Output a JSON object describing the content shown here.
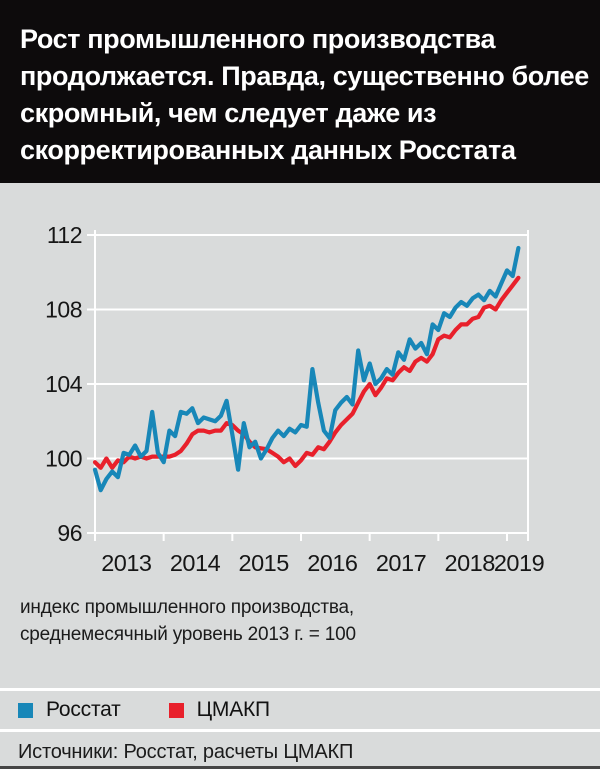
{
  "header": {
    "title_lines": [
      "Рост промышленного производства",
      "продолжается. Правда, существенно более",
      "скромный, чем следует даже из",
      "скорректированных данных Росстата"
    ]
  },
  "caption": {
    "line1": "индекс промышленного производства,",
    "line2": "среднемесячный уровень 2013 г. = 100"
  },
  "legend": {
    "items": [
      {
        "label": "Росстат",
        "color": "#1887b8"
      },
      {
        "label": "ЦМАКП",
        "color": "#e8202b"
      }
    ]
  },
  "footer": {
    "sources": "Источники: Росстат, расчеты ЦМАКП"
  },
  "colors": {
    "background": "#d9dbdb",
    "header_background": "#0d0b0c",
    "grid": "#ffffff",
    "axis_text": "#161616",
    "rosstat_blue": "#1887b8",
    "cmasf_red": "#e8202b"
  },
  "chart_data": {
    "type": "line",
    "title": "Рост промышленного производства продолжается. Правда, существенно более скромный, чем следует даже из скорректированных данных Росстата",
    "subtitle": "индекс промышленного производства, среднемесячный уровень 2013 г. = 100",
    "x_interval": "monthly",
    "x_start": "2013-01",
    "x_end": "2019-03",
    "x_tick_labels": [
      "2013",
      "2014",
      "2015",
      "2016",
      "2017",
      "2018",
      "2019"
    ],
    "y_ticks": [
      96,
      100,
      104,
      108,
      112
    ],
    "ylim": [
      96,
      112
    ],
    "grid": true,
    "legend_position": "bottom",
    "series": [
      {
        "name": "Росстат",
        "color": "#1887b8",
        "values": [
          99.4,
          98.3,
          98.9,
          99.3,
          99.0,
          100.3,
          100.2,
          100.7,
          100.1,
          100.4,
          102.5,
          100.3,
          99.8,
          101.5,
          101.2,
          102.5,
          102.4,
          102.7,
          101.9,
          102.2,
          102.1,
          102.0,
          102.3,
          103.1,
          101.3,
          99.4,
          101.9,
          100.6,
          100.9,
          100.0,
          100.5,
          101.1,
          101.5,
          101.2,
          101.6,
          101.4,
          101.8,
          101.7,
          104.8,
          103.0,
          101.5,
          101.1,
          102.6,
          103.0,
          103.3,
          102.9,
          105.8,
          104.2,
          105.1,
          104.0,
          104.3,
          104.8,
          104.5,
          105.7,
          105.3,
          106.4,
          105.9,
          106.2,
          105.6,
          107.2,
          106.9,
          107.8,
          107.6,
          108.1,
          108.4,
          108.2,
          108.6,
          108.8,
          108.5,
          109.0,
          108.7,
          109.4,
          110.1,
          109.8,
          111.3
        ]
      },
      {
        "name": "ЦМАКП",
        "color": "#e8202b",
        "values": [
          99.8,
          99.5,
          100.0,
          99.5,
          99.9,
          99.8,
          100.1,
          100.0,
          100.1,
          100.0,
          100.1,
          100.1,
          100.1,
          100.1,
          100.2,
          100.4,
          100.8,
          101.3,
          101.5,
          101.5,
          101.4,
          101.5,
          101.5,
          101.9,
          101.8,
          101.5,
          101.3,
          100.9,
          100.6,
          100.55,
          100.5,
          100.3,
          100.1,
          99.8,
          100.0,
          99.6,
          99.9,
          100.3,
          100.2,
          100.6,
          100.5,
          100.9,
          101.4,
          101.8,
          102.1,
          102.4,
          103.0,
          103.6,
          104.0,
          103.4,
          103.8,
          104.3,
          104.2,
          104.6,
          104.9,
          104.7,
          105.2,
          105.4,
          105.2,
          105.6,
          106.4,
          106.6,
          106.5,
          106.9,
          107.2,
          107.2,
          107.5,
          107.6,
          108.1,
          108.2,
          108.0,
          108.5,
          108.9,
          109.3,
          109.7
        ]
      }
    ]
  }
}
